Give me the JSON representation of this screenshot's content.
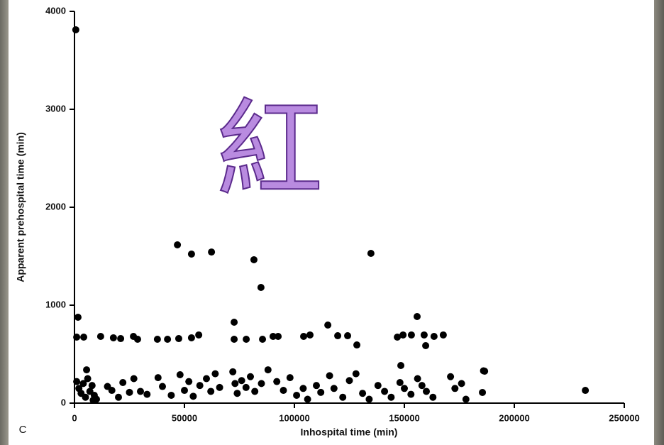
{
  "chart_data": {
    "type": "scatter",
    "panel_label": "C",
    "watermark": "紅",
    "x_label": "Inhospital time (min)",
    "y_label": "Apparent prehospital time (min)",
    "xlim": [
      0,
      250000
    ],
    "ylim": [
      0,
      4000
    ],
    "xticks": [
      0,
      50000,
      100000,
      150000,
      200000,
      250000
    ],
    "yticks": [
      0,
      1000,
      2000,
      3000,
      4000
    ],
    "series": [
      {
        "color": "#000000",
        "x": [
          600,
          1600,
          1000,
          4200,
          46800,
          53200,
          62300,
          81600,
          84800,
          134800,
          72600,
          115200,
          155800,
          148400,
          232300,
          186500,
          185500,
          11900,
          17700,
          21000,
          26800,
          28700,
          37700,
          42300,
          47400,
          53200,
          56500,
          72600,
          78100,
          85500,
          90300,
          92600,
          104200,
          107100,
          119700,
          124200,
          128400,
          146800,
          149400,
          153200,
          159000,
          159700,
          163500,
          167700,
          2000,
          3000,
          4000,
          5000,
          6000,
          7000,
          8000,
          9000,
          10000,
          1000,
          5500,
          8500,
          15000,
          17000,
          20000,
          22000,
          25000,
          27000,
          30000,
          33000,
          38000,
          40000,
          44000,
          48000,
          50000,
          52000,
          54000,
          57000,
          60000,
          62000,
          64000,
          66000,
          72000,
          73000,
          74000,
          76000,
          78000,
          80000,
          82000,
          85000,
          88000,
          92000,
          95000,
          98000,
          101000,
          104000,
          106000,
          110000,
          112000,
          116000,
          118000,
          122000,
          125000,
          128000,
          131000,
          134000,
          138000,
          141000,
          144000,
          148000,
          150000,
          153000,
          156000,
          158000,
          160000,
          163000,
          171000,
          173000,
          176000,
          178000,
          186000
        ],
        "values": [
          3812,
          877,
          674,
          674,
          1616,
          1522,
          1543,
          1464,
          1181,
          1529,
          826,
          797,
          884,
          384,
          130,
          326,
          109,
          681,
          667,
          659,
          681,
          652,
          652,
          652,
          659,
          667,
          696,
          652,
          652,
          652,
          681,
          681,
          681,
          696,
          688,
          688,
          594,
          674,
          696,
          696,
          696,
          587,
          681,
          696,
          150,
          100,
          200,
          60,
          250,
          120,
          180,
          80,
          40,
          220,
          340,
          30,
          170,
          130,
          60,
          210,
          110,
          250,
          120,
          90,
          260,
          170,
          80,
          290,
          130,
          220,
          70,
          180,
          250,
          120,
          300,
          160,
          320,
          200,
          100,
          230,
          160,
          270,
          120,
          200,
          340,
          220,
          130,
          260,
          80,
          150,
          40,
          180,
          110,
          280,
          150,
          60,
          230,
          300,
          100,
          40,
          180,
          120,
          60,
          210,
          150,
          90,
          250,
          180,
          120,
          60,
          270,
          150,
          200,
          40,
          330
        ]
      }
    ]
  }
}
